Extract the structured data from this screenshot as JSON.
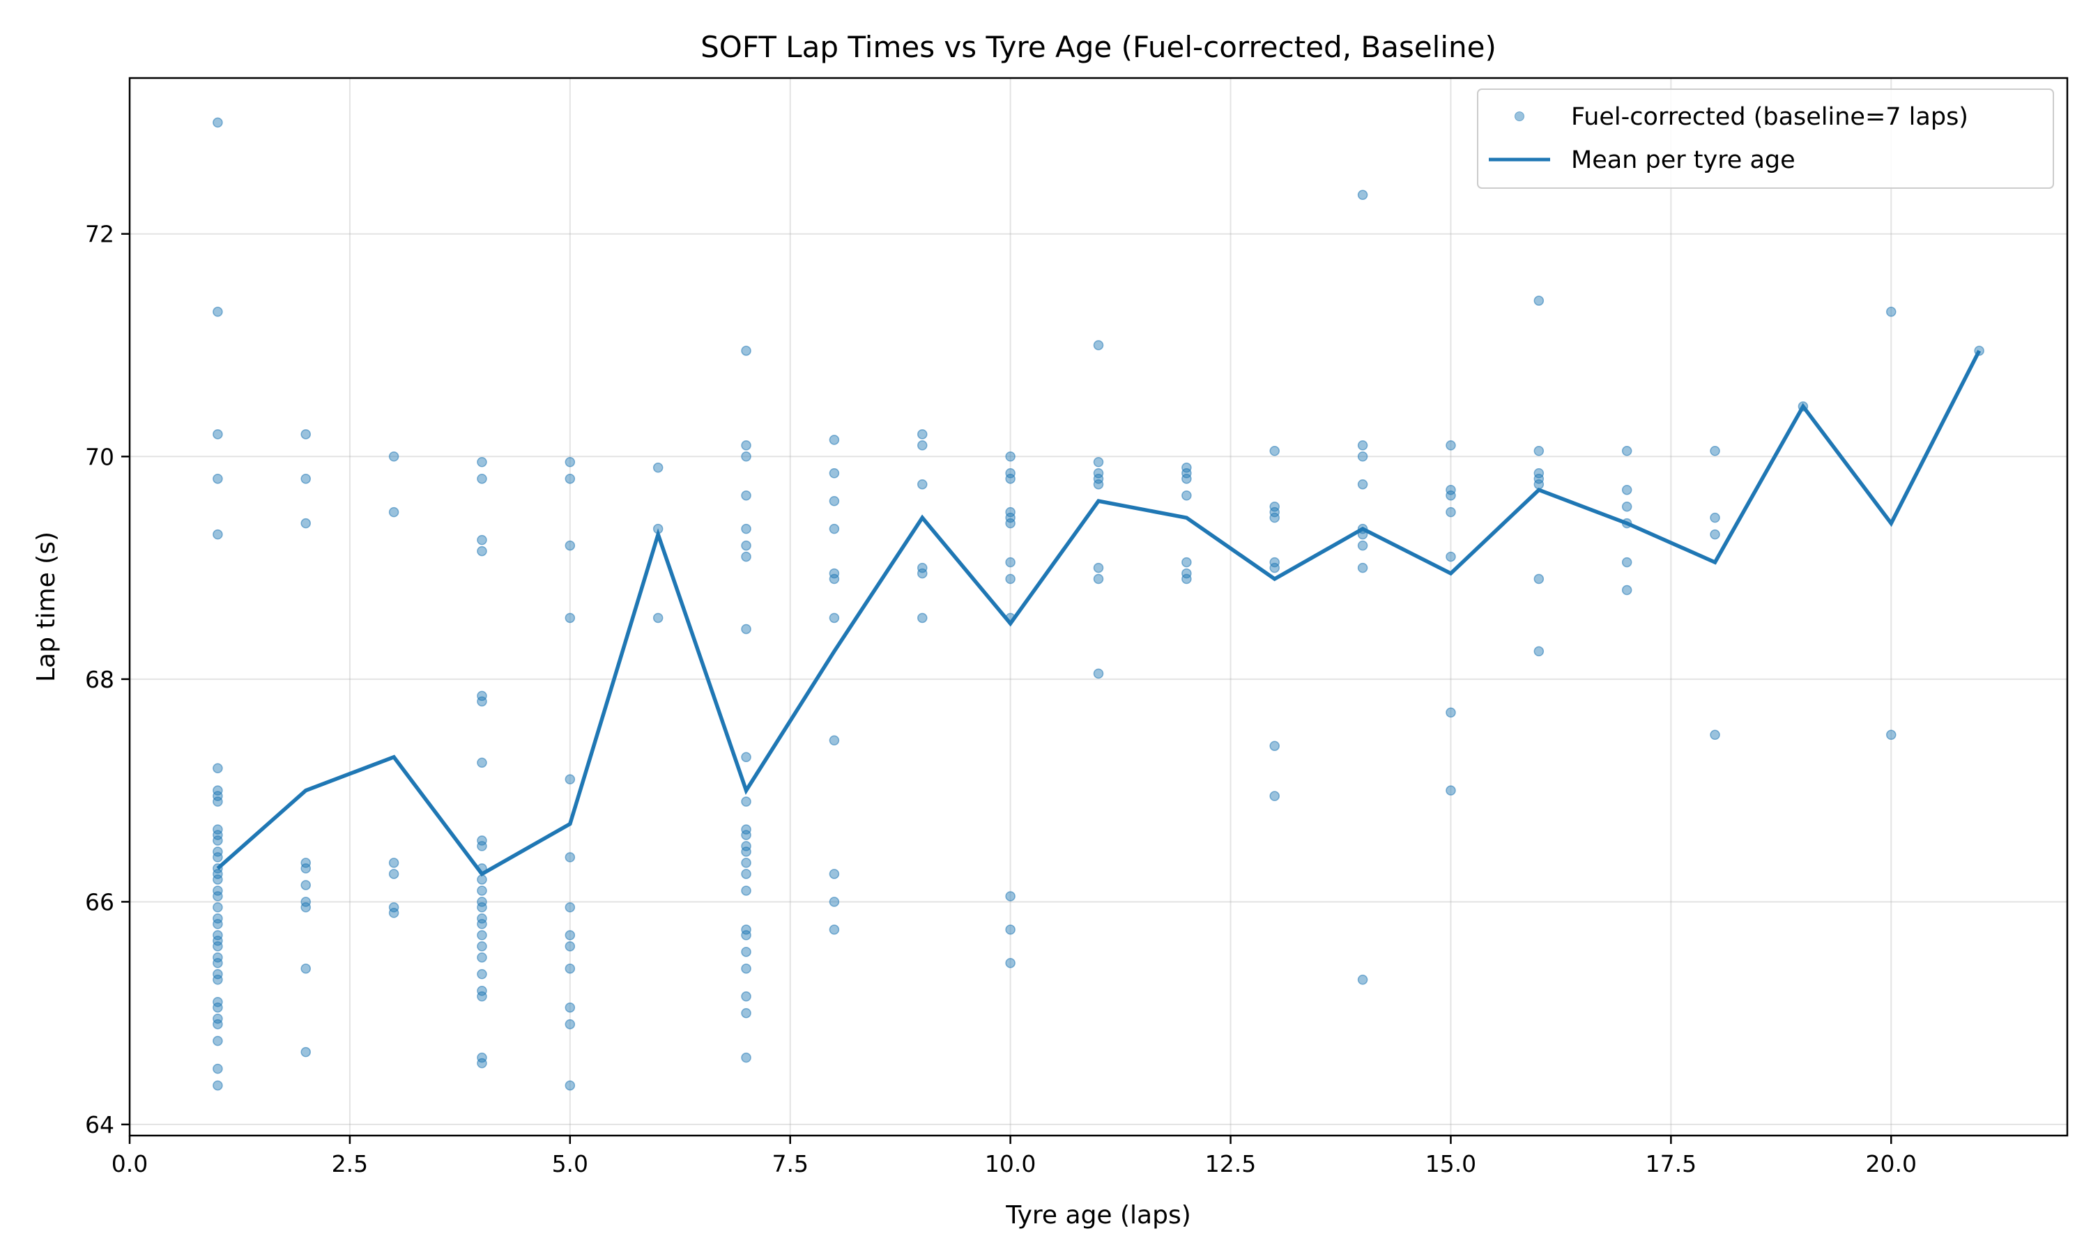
{
  "chart_data": {
    "type": "scatter",
    "title": "SOFT Lap Times vs Tyre Age (Fuel-corrected, Baseline)",
    "xlabel": "Tyre age (laps)",
    "ylabel": "Lap time (s)",
    "xlim": [
      0,
      22
    ],
    "ylim": [
      63.9,
      73.4
    ],
    "xticks": [
      0.0,
      2.5,
      5.0,
      7.5,
      10.0,
      12.5,
      15.0,
      17.5,
      20.0
    ],
    "xtick_labels": [
      "0.0",
      "2.5",
      "5.0",
      "7.5",
      "10.0",
      "12.5",
      "15.0",
      "17.5",
      "20.0"
    ],
    "yticks": [
      64,
      66,
      68,
      70,
      72
    ],
    "ytick_labels": [
      "64",
      "66",
      "68",
      "70",
      "72"
    ],
    "grid": true,
    "legend_position": "top-right",
    "colors": {
      "scatter": "#1f77b4",
      "line": "#1f77b4"
    },
    "series": [
      {
        "name": "Fuel-corrected (baseline=7 laps)",
        "type": "scatter",
        "points": [
          [
            1,
            73.0
          ],
          [
            1,
            71.3
          ],
          [
            1,
            70.2
          ],
          [
            1,
            69.8
          ],
          [
            1,
            69.3
          ],
          [
            1,
            67.2
          ],
          [
            1,
            67.0
          ],
          [
            1,
            66.95
          ],
          [
            1,
            66.9
          ],
          [
            1,
            66.65
          ],
          [
            1,
            66.6
          ],
          [
            1,
            66.55
          ],
          [
            1,
            66.45
          ],
          [
            1,
            66.4
          ],
          [
            1,
            66.3
          ],
          [
            1,
            66.25
          ],
          [
            1,
            66.2
          ],
          [
            1,
            66.1
          ],
          [
            1,
            66.05
          ],
          [
            1,
            65.95
          ],
          [
            1,
            65.85
          ],
          [
            1,
            65.8
          ],
          [
            1,
            65.7
          ],
          [
            1,
            65.65
          ],
          [
            1,
            65.6
          ],
          [
            1,
            65.5
          ],
          [
            1,
            65.45
          ],
          [
            1,
            65.35
          ],
          [
            1,
            65.3
          ],
          [
            1,
            65.1
          ],
          [
            1,
            65.05
          ],
          [
            1,
            64.95
          ],
          [
            1,
            64.9
          ],
          [
            1,
            64.75
          ],
          [
            1,
            64.5
          ],
          [
            1,
            64.35
          ],
          [
            2,
            70.2
          ],
          [
            2,
            69.8
          ],
          [
            2,
            69.4
          ],
          [
            2,
            66.35
          ],
          [
            2,
            66.3
          ],
          [
            2,
            66.15
          ],
          [
            2,
            66.0
          ],
          [
            2,
            65.95
          ],
          [
            2,
            65.4
          ],
          [
            2,
            64.65
          ],
          [
            3,
            70.0
          ],
          [
            3,
            69.5
          ],
          [
            3,
            66.35
          ],
          [
            3,
            66.25
          ],
          [
            3,
            65.95
          ],
          [
            3,
            65.9
          ],
          [
            4,
            69.95
          ],
          [
            4,
            69.8
          ],
          [
            4,
            69.25
          ],
          [
            4,
            69.15
          ],
          [
            4,
            67.85
          ],
          [
            4,
            67.8
          ],
          [
            4,
            67.25
          ],
          [
            4,
            66.55
          ],
          [
            4,
            66.5
          ],
          [
            4,
            66.3
          ],
          [
            4,
            66.2
          ],
          [
            4,
            66.1
          ],
          [
            4,
            66.0
          ],
          [
            4,
            65.95
          ],
          [
            4,
            65.85
          ],
          [
            4,
            65.8
          ],
          [
            4,
            65.7
          ],
          [
            4,
            65.6
          ],
          [
            4,
            65.5
          ],
          [
            4,
            65.35
          ],
          [
            4,
            65.2
          ],
          [
            4,
            65.15
          ],
          [
            4,
            64.6
          ],
          [
            4,
            64.55
          ],
          [
            5,
            69.95
          ],
          [
            5,
            69.8
          ],
          [
            5,
            69.2
          ],
          [
            5,
            68.55
          ],
          [
            5,
            67.1
          ],
          [
            5,
            66.4
          ],
          [
            5,
            65.95
          ],
          [
            5,
            65.7
          ],
          [
            5,
            65.6
          ],
          [
            5,
            65.4
          ],
          [
            5,
            65.05
          ],
          [
            5,
            64.9
          ],
          [
            5,
            64.35
          ],
          [
            6,
            69.9
          ],
          [
            6,
            69.35
          ],
          [
            6,
            68.55
          ],
          [
            7,
            70.95
          ],
          [
            7,
            70.1
          ],
          [
            7,
            70.0
          ],
          [
            7,
            69.65
          ],
          [
            7,
            69.35
          ],
          [
            7,
            69.2
          ],
          [
            7,
            69.1
          ],
          [
            7,
            68.45
          ],
          [
            7,
            67.3
          ],
          [
            7,
            66.9
          ],
          [
            7,
            66.65
          ],
          [
            7,
            66.6
          ],
          [
            7,
            66.5
          ],
          [
            7,
            66.45
          ],
          [
            7,
            66.35
          ],
          [
            7,
            66.25
          ],
          [
            7,
            66.1
          ],
          [
            7,
            65.75
          ],
          [
            7,
            65.7
          ],
          [
            7,
            65.55
          ],
          [
            7,
            65.4
          ],
          [
            7,
            65.15
          ],
          [
            7,
            65.0
          ],
          [
            7,
            64.6
          ],
          [
            8,
            70.15
          ],
          [
            8,
            69.85
          ],
          [
            8,
            69.6
          ],
          [
            8,
            69.35
          ],
          [
            8,
            68.95
          ],
          [
            8,
            68.9
          ],
          [
            8,
            68.55
          ],
          [
            8,
            67.45
          ],
          [
            8,
            66.25
          ],
          [
            8,
            66.0
          ],
          [
            8,
            65.75
          ],
          [
            9,
            70.2
          ],
          [
            9,
            70.1
          ],
          [
            9,
            69.75
          ],
          [
            9,
            69.0
          ],
          [
            9,
            68.95
          ],
          [
            9,
            68.55
          ],
          [
            10,
            70.0
          ],
          [
            10,
            69.85
          ],
          [
            10,
            69.8
          ],
          [
            10,
            69.5
          ],
          [
            10,
            69.45
          ],
          [
            10,
            69.4
          ],
          [
            10,
            69.05
          ],
          [
            10,
            68.9
          ],
          [
            10,
            68.55
          ],
          [
            10,
            66.05
          ],
          [
            10,
            65.75
          ],
          [
            10,
            65.45
          ],
          [
            11,
            71.0
          ],
          [
            11,
            69.95
          ],
          [
            11,
            69.85
          ],
          [
            11,
            69.8
          ],
          [
            11,
            69.75
          ],
          [
            11,
            69.0
          ],
          [
            11,
            68.9
          ],
          [
            11,
            68.05
          ],
          [
            12,
            69.9
          ],
          [
            12,
            69.85
          ],
          [
            12,
            69.8
          ],
          [
            12,
            69.65
          ],
          [
            12,
            69.05
          ],
          [
            12,
            68.95
          ],
          [
            12,
            68.9
          ],
          [
            13,
            70.05
          ],
          [
            13,
            69.55
          ],
          [
            13,
            69.5
          ],
          [
            13,
            69.45
          ],
          [
            13,
            69.05
          ],
          [
            13,
            69.0
          ],
          [
            13,
            67.4
          ],
          [
            13,
            66.95
          ],
          [
            14,
            72.35
          ],
          [
            14,
            70.1
          ],
          [
            14,
            70.0
          ],
          [
            14,
            69.75
          ],
          [
            14,
            69.35
          ],
          [
            14,
            69.3
          ],
          [
            14,
            69.2
          ],
          [
            14,
            69.0
          ],
          [
            14,
            65.3
          ],
          [
            15,
            70.1
          ],
          [
            15,
            69.7
          ],
          [
            15,
            69.65
          ],
          [
            15,
            69.5
          ],
          [
            15,
            69.1
          ],
          [
            15,
            67.7
          ],
          [
            15,
            67.0
          ],
          [
            16,
            71.4
          ],
          [
            16,
            70.05
          ],
          [
            16,
            69.85
          ],
          [
            16,
            69.8
          ],
          [
            16,
            69.75
          ],
          [
            16,
            68.9
          ],
          [
            16,
            68.25
          ],
          [
            17,
            70.05
          ],
          [
            17,
            69.7
          ],
          [
            17,
            69.55
          ],
          [
            17,
            69.4
          ],
          [
            17,
            69.05
          ],
          [
            17,
            68.8
          ],
          [
            18,
            70.05
          ],
          [
            18,
            69.45
          ],
          [
            18,
            69.3
          ],
          [
            18,
            67.5
          ],
          [
            19,
            70.45
          ],
          [
            20,
            71.3
          ],
          [
            20,
            67.5
          ],
          [
            21,
            70.95
          ]
        ]
      },
      {
        "name": "Mean per tyre age",
        "type": "line",
        "x": [
          1,
          2,
          3,
          4,
          5,
          6,
          7,
          8,
          9,
          10,
          11,
          12,
          13,
          14,
          15,
          16,
          17,
          18,
          19,
          20,
          21
        ],
        "y": [
          66.3,
          67.0,
          67.3,
          66.25,
          66.7,
          69.3,
          67.0,
          68.25,
          69.45,
          68.5,
          69.6,
          69.45,
          68.9,
          69.35,
          68.95,
          69.7,
          69.4,
          69.05,
          70.45,
          69.4,
          70.95
        ]
      }
    ]
  }
}
